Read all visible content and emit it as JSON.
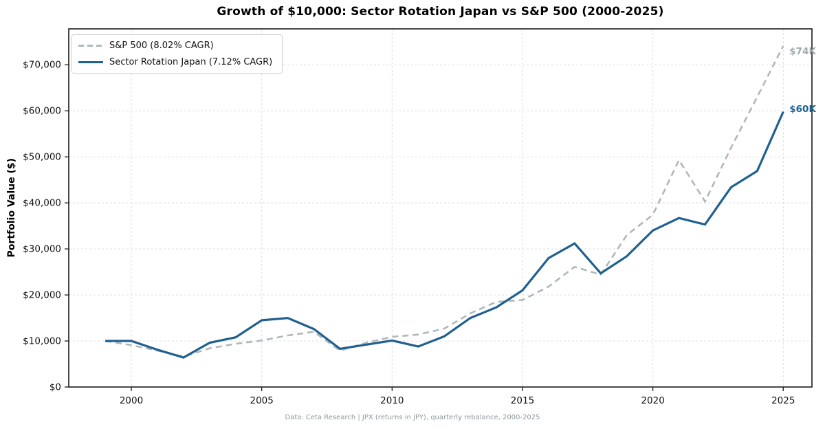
{
  "title": "Growth of $10,000: Sector Rotation Japan vs S&P 500 (2000-2025)",
  "y_axis_label": "Portfolio Value ($)",
  "footer": "Data: Ceta Research | JPX (returns in JPY), quarterly rebalance, 2000-2025",
  "legend": {
    "items": [
      {
        "label": "S&P 500 (8.02% CAGR)",
        "color": "#aeb8bb",
        "dashed": true
      },
      {
        "label": "Sector Rotation Japan (7.12% CAGR)",
        "color": "#1e608f",
        "dashed": false
      }
    ]
  },
  "annotations": [
    {
      "text": "$74K",
      "value": 74100,
      "color": "#9fa9ad",
      "dy": 9
    },
    {
      "text": "$60K",
      "value": 59800,
      "color": "#1e608f",
      "dy": -3
    }
  ],
  "colors": {
    "grid": "#d9d9d9",
    "spine": "#1a1a1a",
    "tick_label": "#111111",
    "sp500_line": "#aeb8bb",
    "japan_line": "#1e608f"
  },
  "chart_data": {
    "type": "line",
    "title": "Growth of $10,000: Sector Rotation Japan vs S&P 500 (2000-2025)",
    "xlabel": "",
    "ylabel": "Portfolio Value ($)",
    "x": [
      1999,
      2000,
      2001,
      2002,
      2003,
      2004,
      2005,
      2006,
      2007,
      2008,
      2009,
      2010,
      2011,
      2012,
      2013,
      2014,
      2015,
      2016,
      2017,
      2018,
      2019,
      2020,
      2021,
      2022,
      2023,
      2024,
      2025
    ],
    "series": [
      {
        "name": "S&P 500 (8.02% CAGR)",
        "color": "#aeb8bb",
        "dash": [
          9,
          6
        ],
        "width": 2.6,
        "values": [
          10000,
          9100,
          7900,
          6600,
          8400,
          9400,
          10100,
          11200,
          12000,
          7900,
          9600,
          10900,
          11400,
          12700,
          16000,
          18500,
          18900,
          21800,
          26100,
          24400,
          33000,
          37400,
          49300,
          40300,
          52000,
          63000,
          74100
        ]
      },
      {
        "name": "Sector Rotation Japan (7.12% CAGR)",
        "color": "#1e608f",
        "dash": null,
        "width": 3.2,
        "values": [
          10000,
          10000,
          8100,
          6400,
          9600,
          10800,
          14500,
          15000,
          12600,
          8300,
          9200,
          10100,
          8800,
          11000,
          15000,
          17300,
          21000,
          28000,
          31200,
          24700,
          28400,
          34000,
          36700,
          35300,
          43400,
          46900,
          59800
        ]
      }
    ],
    "xlim": [
      1997.6,
      2026.1
    ],
    "ylim": [
      0,
      77800
    ],
    "x_ticks": [
      2000,
      2005,
      2010,
      2015,
      2020,
      2025
    ],
    "x_tick_labels": [
      "2000",
      "2005",
      "2010",
      "2015",
      "2020",
      "2025"
    ],
    "y_ticks": [
      0,
      10000,
      20000,
      30000,
      40000,
      50000,
      60000,
      70000
    ],
    "y_tick_labels": [
      "$0",
      "$10,000",
      "$20,000",
      "$30,000",
      "$40,000",
      "$50,000",
      "$60,000",
      "$70,000"
    ],
    "grid": true,
    "legend_position": "upper left"
  }
}
